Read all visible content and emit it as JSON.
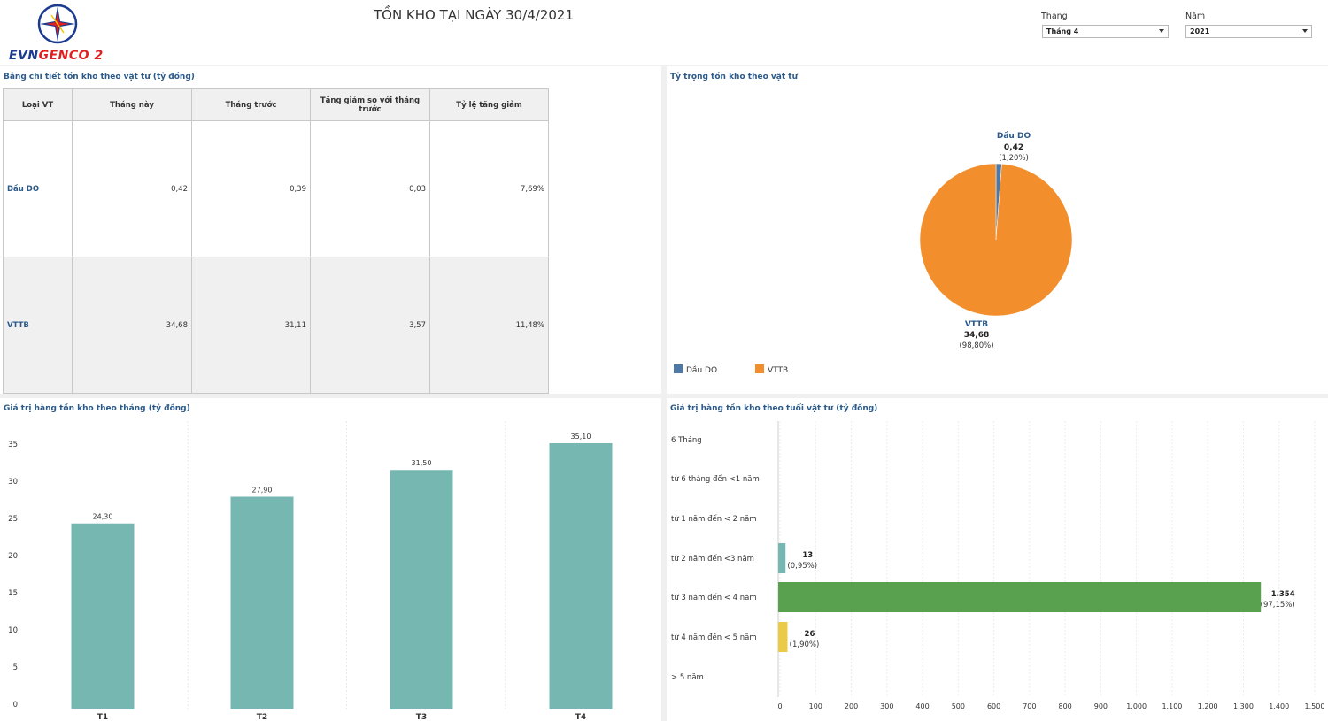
{
  "header": {
    "logo_text_1": "EVN",
    "logo_text_2": "GENCO 2",
    "title": "TỒN KHO TẠI NGÀY 30/4/2021",
    "filters": {
      "month_label": "Tháng",
      "month_value": "Tháng 4",
      "year_label": "Năm",
      "year_value": "2021"
    }
  },
  "colors": {
    "teal": "#76b7b2",
    "orange": "#f28e2b",
    "blue": "#4e79a7",
    "green": "#59a14f",
    "yellow": "#edc948",
    "title_blue": "#2b5a8a"
  },
  "table_panel": {
    "title": "Bảng chi tiết tồn kho theo vật tư (tỷ đồng)",
    "headers": [
      "Loại VT",
      "Tháng này",
      "Tháng trước",
      "Tăng giảm so với tháng trước",
      "Tỷ lệ tăng giảm"
    ],
    "rows": [
      {
        "name": "Dầu DO",
        "this_month": "0,42",
        "last_month": "0,39",
        "change": "0,03",
        "rate": "7,69%"
      },
      {
        "name": "VTTB",
        "this_month": "34,68",
        "last_month": "31,11",
        "change": "3,57",
        "rate": "11,48%"
      }
    ]
  },
  "pie_panel": {
    "title": "Tỷ trọng tồn kho theo vật tư"
  },
  "monthly_panel": {
    "title": "Giá trị hàng tồn kho theo tháng (tỷ đồng)"
  },
  "age_panel": {
    "title": "Giá trị hàng tồn kho theo tuổi vật tư (tỷ đồng)"
  },
  "chart_data": [
    {
      "type": "pie",
      "title": "Tỷ trọng tồn kho theo vật tư",
      "slices": [
        {
          "name": "Dầu DO",
          "value": 0.42,
          "value_label": "0,42",
          "percent_label": "(1,20%)",
          "color": "#4e79a7"
        },
        {
          "name": "VTTB",
          "value": 34.68,
          "value_label": "34,68",
          "percent_label": "(98,80%)",
          "color": "#f28e2b"
        }
      ],
      "legend": [
        "Dầu DO",
        "VTTB"
      ],
      "legend_position": "bottom-left"
    },
    {
      "type": "bar",
      "title": "Giá trị hàng tồn kho theo tháng (tỷ đồng)",
      "categories": [
        "T1",
        "T2",
        "T3",
        "T4"
      ],
      "values": [
        24.3,
        27.9,
        31.5,
        35.1
      ],
      "value_labels": [
        "24,30",
        "27,90",
        "31,50",
        "35,10"
      ],
      "ylim": [
        0,
        37
      ],
      "yticks": [
        0,
        5,
        10,
        15,
        20,
        25,
        30,
        35
      ],
      "color": "#76b7b2"
    },
    {
      "type": "bar",
      "orientation": "horizontal",
      "title": "Giá trị hàng tồn kho theo tuổi vật tư (tỷ đồng)",
      "categories": [
        "6 Tháng",
        "từ 6 tháng đến <1 năm",
        "từ 1 năm đến < 2 năm",
        "từ 2 năm đến <3 năm",
        "từ 3 năm đến < 4 năm",
        "từ 4 năm đến < 5 năm",
        "> 5 năm"
      ],
      "values": [
        0,
        0,
        0,
        13,
        1354,
        26,
        0
      ],
      "value_labels": [
        "",
        "",
        "",
        "13",
        "1.354",
        "26",
        ""
      ],
      "percent_labels": [
        "",
        "",
        "",
        "(0,95%)",
        "(97,15%)",
        "(1,90%)",
        ""
      ],
      "colors": [
        "",
        "",
        "",
        "#76b7b2",
        "#59a14f",
        "#edc948",
        ""
      ],
      "xlim": [
        0,
        1500
      ],
      "xticks": [
        0,
        100,
        200,
        300,
        400,
        500,
        600,
        700,
        800,
        900,
        1000,
        1100,
        1200,
        1300,
        1400,
        1500
      ],
      "xtick_labels": [
        "0",
        "100",
        "200",
        "300",
        "400",
        "500",
        "600",
        "700",
        "800",
        "900",
        "1.000",
        "1.100",
        "1.200",
        "1.300",
        "1.400",
        "1.500"
      ]
    }
  ]
}
